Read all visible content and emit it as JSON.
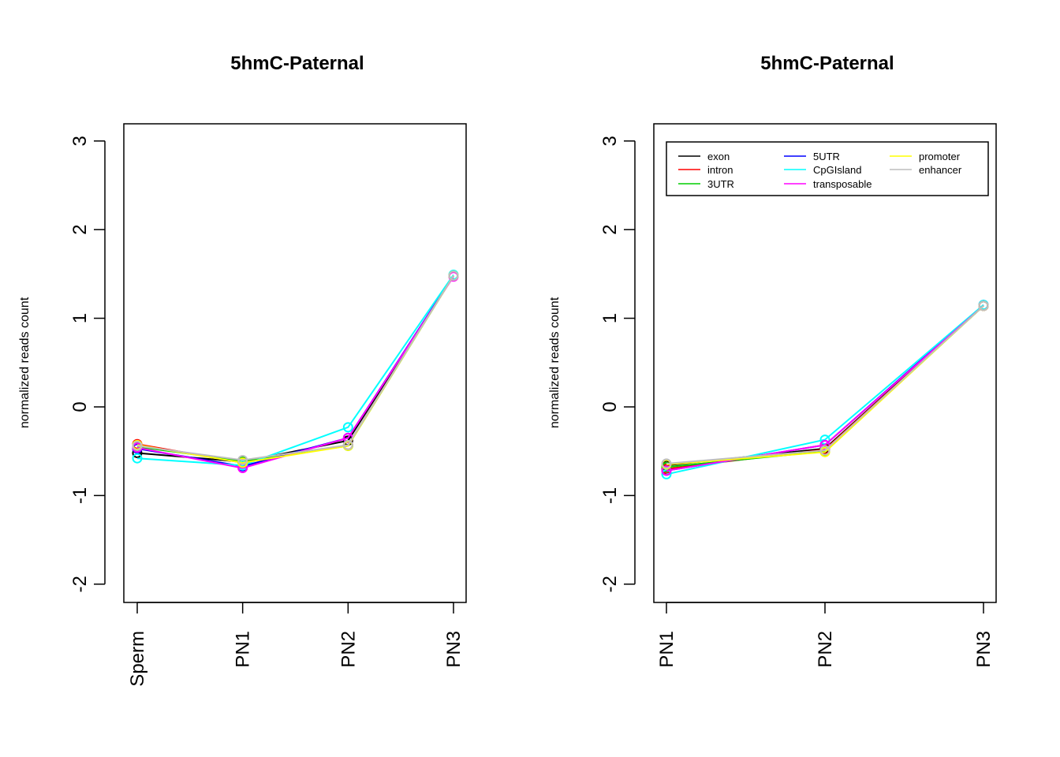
{
  "colors": {
    "exon": "#000000",
    "intron": "#FF0000",
    "3UTR": "#00CD00",
    "5UTR": "#0000FF",
    "CpGIsland": "#00FFFF",
    "transposable": "#FF00FF",
    "promoter": "#FFFF00",
    "enhancer": "#BEBEBE"
  },
  "chart_data": [
    {
      "type": "line",
      "title": "5hmC-Paternal",
      "xlabel": "",
      "ylabel": "normalized reads count",
      "categories": [
        "Sperm",
        "PN1",
        "PN2",
        "PN3"
      ],
      "ylim": [
        -2.2,
        3.2
      ],
      "yticks": [
        "-2",
        "-1",
        "0",
        "1",
        "2",
        "3"
      ],
      "legend": false,
      "series": [
        {
          "name": "exon",
          "values": [
            -0.52,
            -0.62,
            -0.38,
            1.48
          ]
        },
        {
          "name": "intron",
          "values": [
            -0.42,
            -0.63,
            -0.43,
            1.48
          ]
        },
        {
          "name": "3UTR",
          "values": [
            -0.45,
            -0.61,
            -0.44,
            1.48
          ]
        },
        {
          "name": "5UTR",
          "values": [
            -0.47,
            -0.67,
            -0.35,
            1.48
          ]
        },
        {
          "name": "CpGIsland",
          "values": [
            -0.58,
            -0.66,
            -0.23,
            1.49
          ]
        },
        {
          "name": "transposable",
          "values": [
            -0.46,
            -0.69,
            -0.35,
            1.47
          ]
        },
        {
          "name": "promoter",
          "values": [
            -0.43,
            -0.63,
            -0.44,
            1.48
          ]
        },
        {
          "name": "enhancer",
          "values": [
            -0.44,
            -0.6,
            -0.43,
            1.48
          ]
        }
      ]
    },
    {
      "type": "line",
      "title": "5hmC-Paternal",
      "xlabel": "",
      "ylabel": "normalized reads count",
      "categories": [
        "PN1",
        "PN2",
        "PN3"
      ],
      "ylim": [
        -2.2,
        3.2
      ],
      "yticks": [
        "-2",
        "-1",
        "0",
        "1",
        "2",
        "3"
      ],
      "legend": true,
      "legend_position": "top",
      "series": [
        {
          "name": "exon",
          "values": [
            -0.66,
            -0.47,
            1.14
          ]
        },
        {
          "name": "intron",
          "values": [
            -0.7,
            -0.48,
            1.14
          ]
        },
        {
          "name": "3UTR",
          "values": [
            -0.68,
            -0.5,
            1.14
          ]
        },
        {
          "name": "5UTR",
          "values": [
            -0.72,
            -0.43,
            1.15
          ]
        },
        {
          "name": "CpGIsland",
          "values": [
            -0.76,
            -0.37,
            1.15
          ]
        },
        {
          "name": "transposable",
          "values": [
            -0.72,
            -0.43,
            1.14
          ]
        },
        {
          "name": "promoter",
          "values": [
            -0.65,
            -0.51,
            1.14
          ]
        },
        {
          "name": "enhancer",
          "values": [
            -0.64,
            -0.49,
            1.14
          ]
        }
      ]
    }
  ]
}
